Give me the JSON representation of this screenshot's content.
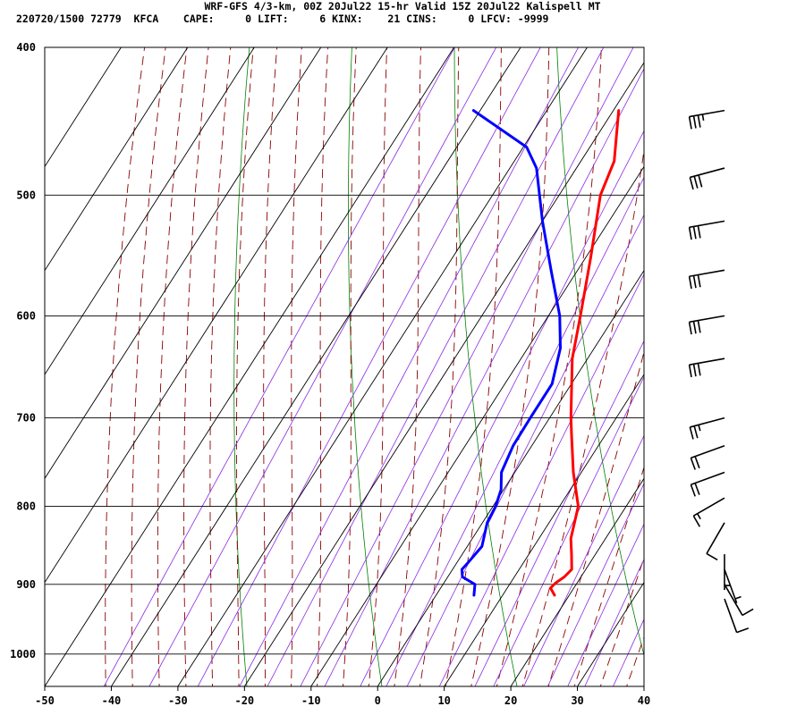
{
  "header": {
    "title_line": "WRF-GFS 4/3-km, 00Z 20Jul22 15-hr Valid 15Z 20Jul22 Kalispell MT",
    "index_line": "220720/1500 72779  KFCA    CAPE:     0 LIFT:     6 KINX:    21 CINS:     0 LFCV: -9999"
  },
  "colors": {
    "temperature": "#ff0000",
    "dewpoint": "#0000ff",
    "isotherm": "#000000",
    "isobar": "#000000",
    "dry_adiabat": "#008000",
    "moist_adiabat": "#8b0000",
    "mixing_ratio": "#8a2be2",
    "wind_barb": "#000000"
  },
  "chart_data": {
    "type": "skew-t log-p sounding",
    "x_axis": {
      "quantity": "temperature (C)",
      "ticks": [
        "-50",
        "-40",
        "-30",
        "-20",
        "-10",
        "0",
        "10",
        "20",
        "30",
        "40"
      ],
      "range": [
        -50,
        40
      ]
    },
    "y_axis": {
      "quantity": "pressure (hPa)",
      "scale": "log",
      "ticks": [
        "400",
        "500",
        "600",
        "700",
        "800",
        "900",
        "1000"
      ],
      "range": [
        400,
        1050
      ]
    },
    "grid": true,
    "background_lines": [
      "isotherms",
      "isobars",
      "dry adiabats",
      "moist adiabats",
      "mixing ratio lines"
    ],
    "series": [
      {
        "key": "temperature",
        "points": [
          [
            915,
            17.8
          ],
          [
            905,
            16.5
          ],
          [
            898,
            16.8
          ],
          [
            890,
            17.5
          ],
          [
            880,
            17.9
          ],
          [
            860,
            16.4
          ],
          [
            840,
            14.8
          ],
          [
            800,
            12.8
          ],
          [
            760,
            8.8
          ],
          [
            720,
            5.1
          ],
          [
            700,
            3.2
          ],
          [
            640,
            -2.3
          ],
          [
            600,
            -5.2
          ],
          [
            550,
            -9.2
          ],
          [
            500,
            -13.8
          ],
          [
            475,
            -15.0
          ],
          [
            440,
            -19.2
          ]
        ]
      },
      {
        "key": "dewpoint",
        "points": [
          [
            915,
            5.7
          ],
          [
            900,
            4.8
          ],
          [
            890,
            2.2
          ],
          [
            880,
            1.4
          ],
          [
            870,
            1.7
          ],
          [
            850,
            2.2
          ],
          [
            820,
            0.7
          ],
          [
            800,
            0.4
          ],
          [
            780,
            -0.4
          ],
          [
            760,
            -2.0
          ],
          [
            730,
            -2.8
          ],
          [
            700,
            -2.9
          ],
          [
            665,
            -2.9
          ],
          [
            630,
            -5.1
          ],
          [
            600,
            -8.3
          ],
          [
            560,
            -14.0
          ],
          [
            520,
            -20.0
          ],
          [
            480,
            -26.0
          ],
          [
            465,
            -29.5
          ],
          [
            440,
            -41.0
          ]
        ]
      }
    ],
    "wind_barbs": [
      {
        "p": 440,
        "dir": 260,
        "kt": 35
      },
      {
        "p": 480,
        "dir": 255,
        "kt": 30
      },
      {
        "p": 520,
        "dir": 260,
        "kt": 30
      },
      {
        "p": 560,
        "dir": 260,
        "kt": 30
      },
      {
        "p": 600,
        "dir": 260,
        "kt": 30
      },
      {
        "p": 640,
        "dir": 260,
        "kt": 30
      },
      {
        "p": 700,
        "dir": 255,
        "kt": 25
      },
      {
        "p": 730,
        "dir": 250,
        "kt": 20
      },
      {
        "p": 760,
        "dir": 250,
        "kt": 20
      },
      {
        "p": 790,
        "dir": 240,
        "kt": 15
      },
      {
        "p": 820,
        "dir": 210,
        "kt": 10
      },
      {
        "p": 860,
        "dir": 180,
        "kt": 5
      },
      {
        "p": 880,
        "dir": 160,
        "kt": 5
      },
      {
        "p": 900,
        "dir": 150,
        "kt": 10
      },
      {
        "p": 920,
        "dir": 160,
        "kt": 10
      }
    ]
  }
}
